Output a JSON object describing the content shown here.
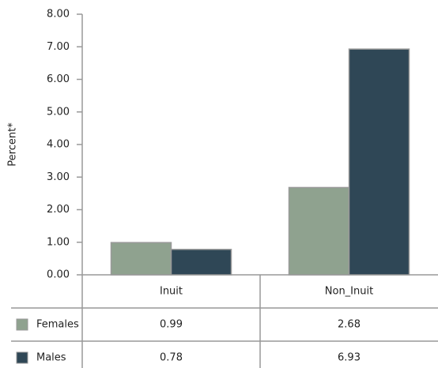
{
  "chart_data": {
    "type": "bar",
    "y_label": "Percent*",
    "categories": [
      "Inuit",
      "Non_Inuit"
    ],
    "series": [
      {
        "name": "Females",
        "color": "#8fa28f",
        "values": [
          0.99,
          2.68
        ]
      },
      {
        "name": "Males",
        "color": "#2f4756",
        "values": [
          0.78,
          6.93
        ]
      }
    ],
    "ylim": [
      0,
      8
    ],
    "yticks": [
      {
        "value": 0,
        "label": "0.00"
      },
      {
        "value": 1,
        "label": "1.00"
      },
      {
        "value": 2,
        "label": "2.00"
      },
      {
        "value": 3,
        "label": "3.00"
      },
      {
        "value": 4,
        "label": "4.00"
      },
      {
        "value": 5,
        "label": "5.00"
      },
      {
        "value": 6,
        "label": "6.00"
      },
      {
        "value": 7,
        "label": "7.00"
      },
      {
        "value": 8,
        "label": "8.00"
      }
    ],
    "grid": false
  }
}
